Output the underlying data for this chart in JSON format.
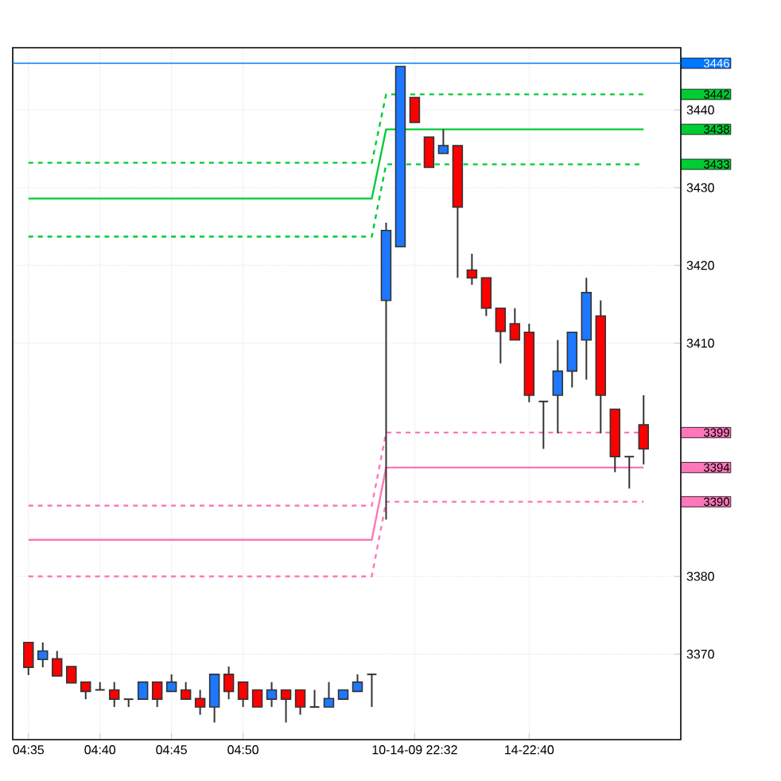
{
  "chart_data": {
    "type": "candlestick",
    "categories": [
      "04:35",
      null,
      null,
      null,
      null,
      "04:40",
      null,
      null,
      null,
      null,
      "04:45",
      null,
      null,
      null,
      null,
      "04:50",
      null,
      null,
      null,
      null,
      null,
      null,
      null,
      null,
      null,
      null,
      null,
      "10-14-09 22:32",
      null,
      null,
      null,
      null,
      null,
      null,
      null,
      "14-22:40",
      null,
      null,
      null,
      null,
      null,
      null,
      null,
      null
    ],
    "ohlc": [
      [
        3371.5,
        3371.5,
        3367.3,
        3368.3
      ],
      [
        3369.3,
        3371.5,
        3368.3,
        3370.4
      ],
      [
        3369.4,
        3370.4,
        3367.2,
        3367.2
      ],
      [
        3368.4,
        3368.4,
        3366.3,
        3366.3
      ],
      [
        3366.4,
        3366.4,
        3364.2,
        3365.2
      ],
      [
        3365.4,
        3366.4,
        3365.4,
        3365.4
      ],
      [
        3365.4,
        3366.4,
        3363.2,
        3364.2
      ],
      [
        3364.2,
        3364.2,
        3363.2,
        3364.2
      ],
      [
        3364.2,
        3366.4,
        3364.2,
        3366.4
      ],
      [
        3366.4,
        3366.4,
        3363.2,
        3364.2
      ],
      [
        3365.2,
        3367.4,
        3365.2,
        3366.4
      ],
      [
        3365.4,
        3366.4,
        3364.2,
        3364.2
      ],
      [
        3364.3,
        3365.4,
        3362.2,
        3363.2
      ],
      [
        3363.2,
        3367.4,
        3361.2,
        3367.4
      ],
      [
        3367.4,
        3368.4,
        3364.2,
        3365.2
      ],
      [
        3366.4,
        3366.4,
        3363.2,
        3364.2
      ],
      [
        3365.4,
        3365.4,
        3363.2,
        3363.2
      ],
      [
        3364.2,
        3366.4,
        3363.2,
        3365.4
      ],
      [
        3365.4,
        3365.4,
        3361.2,
        3364.2
      ],
      [
        3365.4,
        3365.4,
        3362.2,
        3363.2
      ],
      [
        3363.2,
        3365.4,
        3363.2,
        3363.2
      ],
      [
        3363.2,
        3366.4,
        3363.2,
        3364.3
      ],
      [
        3364.2,
        3365.4,
        3364.2,
        3365.4
      ],
      [
        3365.2,
        3367.4,
        3365.2,
        3366.4
      ],
      [
        3367.4,
        3367.4,
        3363.2,
        3367.4
      ],
      [
        3415.5,
        3425.5,
        3387.3,
        3424.5
      ],
      [
        3422.4,
        3445.6,
        3422.4,
        3445.6
      ],
      [
        3441.6,
        3441.6,
        3438.4,
        3438.4
      ],
      [
        3436.5,
        3436.5,
        3432.6,
        3432.6
      ],
      [
        3434.4,
        3437.5,
        3434.4,
        3435.4
      ],
      [
        3435.4,
        3435.4,
        3418.4,
        3427.5
      ],
      [
        3419.4,
        3421.5,
        3417.5,
        3418.4
      ],
      [
        3418.4,
        3418.4,
        3413.5,
        3414.5
      ],
      [
        3414.5,
        3414.5,
        3407.4,
        3411.5
      ],
      [
        3412.5,
        3414.5,
        3410.4,
        3410.4
      ],
      [
        3411.4,
        3412.5,
        3402.4,
        3403.3
      ],
      [
        3402.5,
        3402.5,
        3396.4,
        3402.5
      ],
      [
        3403.3,
        3410.4,
        3398.4,
        3406.4
      ],
      [
        3406.4,
        3411.4,
        3404.3,
        3411.4
      ],
      [
        3410.4,
        3418.4,
        3405.3,
        3416.5
      ],
      [
        3413.5,
        3415.5,
        3398.4,
        3403.3
      ],
      [
        3401.5,
        3401.5,
        3393.4,
        3395.4
      ],
      [
        3395.4,
        3395.4,
        3391.3,
        3395.4
      ],
      [
        3399.5,
        3403.3,
        3394.4,
        3396.4
      ]
    ],
    "series": [
      {
        "name": "3442",
        "type": "line",
        "color": "#00cc33",
        "line_style": "dashed",
        "values": [
          3433.2,
          3433.2,
          3433.2,
          3433.2,
          3433.2,
          3433.2,
          3433.2,
          3433.2,
          3433.2,
          3433.2,
          3433.2,
          3433.2,
          3433.2,
          3433.2,
          3433.2,
          3433.2,
          3433.2,
          3433.2,
          3433.2,
          3433.2,
          3433.2,
          3433.2,
          3433.2,
          3433.2,
          3433.2,
          3442,
          3442,
          3442,
          3442,
          3442,
          3442,
          3442,
          3442,
          3442,
          3442,
          3442,
          3442,
          3442,
          3442,
          3442,
          3442,
          3442,
          3442,
          3442
        ]
      },
      {
        "name": "3438",
        "type": "line",
        "color": "#00cc33",
        "line_style": "solid",
        "values": [
          3428.6,
          3428.6,
          3428.6,
          3428.6,
          3428.6,
          3428.6,
          3428.6,
          3428.6,
          3428.6,
          3428.6,
          3428.6,
          3428.6,
          3428.6,
          3428.6,
          3428.6,
          3428.6,
          3428.6,
          3428.6,
          3428.6,
          3428.6,
          3428.6,
          3428.6,
          3428.6,
          3428.6,
          3428.6,
          3437.5,
          3437.5,
          3437.5,
          3437.5,
          3437.5,
          3437.5,
          3437.5,
          3437.5,
          3437.5,
          3437.5,
          3437.5,
          3437.5,
          3437.5,
          3437.5,
          3437.5,
          3437.5,
          3437.5,
          3437.5,
          3437.5
        ]
      },
      {
        "name": "3433",
        "type": "line",
        "color": "#00cc33",
        "line_style": "dashed",
        "values": [
          3423.7,
          3423.7,
          3423.7,
          3423.7,
          3423.7,
          3423.7,
          3423.7,
          3423.7,
          3423.7,
          3423.7,
          3423.7,
          3423.7,
          3423.7,
          3423.7,
          3423.7,
          3423.7,
          3423.7,
          3423.7,
          3423.7,
          3423.7,
          3423.7,
          3423.7,
          3423.7,
          3423.7,
          3423.7,
          3433,
          3433,
          3433,
          3433,
          3433,
          3433,
          3433,
          3433,
          3433,
          3433,
          3433,
          3433,
          3433,
          3433,
          3433,
          3433,
          3433,
          3433,
          3433
        ]
      },
      {
        "name": "3399",
        "type": "line",
        "color": "#ff77bb",
        "line_style": "dashed",
        "values": [
          3389.1,
          3389.1,
          3389.1,
          3389.1,
          3389.1,
          3389.1,
          3389.1,
          3389.1,
          3389.1,
          3389.1,
          3389.1,
          3389.1,
          3389.1,
          3389.1,
          3389.1,
          3389.1,
          3389.1,
          3389.1,
          3389.1,
          3389.1,
          3389.1,
          3389.1,
          3389.1,
          3389.1,
          3389.1,
          3398.5,
          3398.5,
          3398.5,
          3398.5,
          3398.5,
          3398.5,
          3398.5,
          3398.5,
          3398.5,
          3398.5,
          3398.5,
          3398.5,
          3398.5,
          3398.5,
          3398.5,
          3398.5,
          3398.5,
          3398.5,
          3398.5
        ]
      },
      {
        "name": "3394",
        "type": "line",
        "color": "#ff77bb",
        "line_style": "solid",
        "values": [
          3384.7,
          3384.7,
          3384.7,
          3384.7,
          3384.7,
          3384.7,
          3384.7,
          3384.7,
          3384.7,
          3384.7,
          3384.7,
          3384.7,
          3384.7,
          3384.7,
          3384.7,
          3384.7,
          3384.7,
          3384.7,
          3384.7,
          3384.7,
          3384.7,
          3384.7,
          3384.7,
          3384.7,
          3384.7,
          3394,
          3394,
          3394,
          3394,
          3394,
          3394,
          3394,
          3394,
          3394,
          3394,
          3394,
          3394,
          3394,
          3394,
          3394,
          3394,
          3394,
          3394,
          3394
        ]
      },
      {
        "name": "3390",
        "type": "line",
        "color": "#ff77bb",
        "line_style": "dashed",
        "values": [
          3380,
          3380,
          3380,
          3380,
          3380,
          3380,
          3380,
          3380,
          3380,
          3380,
          3380,
          3380,
          3380,
          3380,
          3380,
          3380,
          3380,
          3380,
          3380,
          3380,
          3380,
          3380,
          3380,
          3380,
          3380,
          3389.6,
          3389.6,
          3389.6,
          3389.6,
          3389.6,
          3389.6,
          3389.6,
          3389.6,
          3389.6,
          3389.6,
          3389.6,
          3389.6,
          3389.6,
          3389.6,
          3389.6,
          3389.6,
          3389.6,
          3389.6,
          3389.6
        ]
      }
    ],
    "ref_lines": [
      {
        "axis": "y",
        "value": 3446,
        "label": "3446",
        "color": "#0077ff"
      }
    ],
    "ylim": [
      3359,
      3448
    ],
    "yticks": [
      3370,
      3380,
      3410,
      3420,
      3430,
      3440
    ],
    "grid": true
  }
}
